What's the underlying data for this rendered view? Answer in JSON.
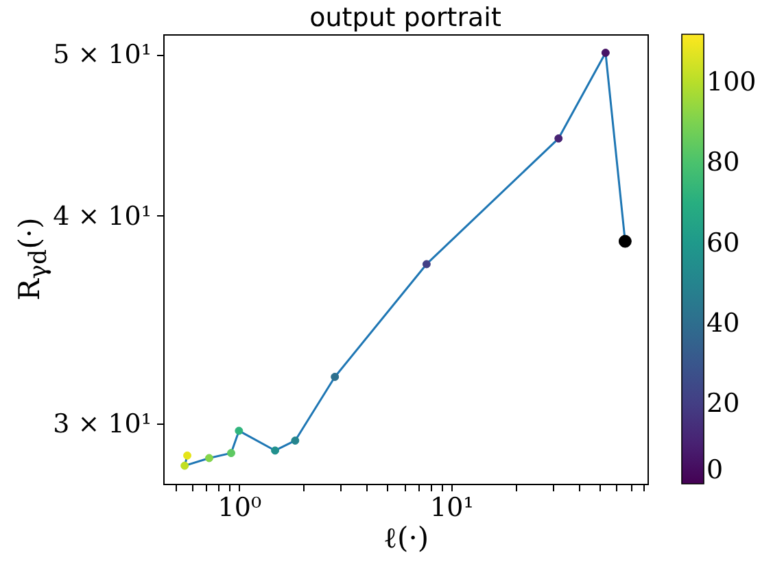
{
  "chart_data": {
    "type": "scatter",
    "title": "output portrait",
    "xlabel": "ℓ(·)",
    "ylabel": "R$_{γd}$(·)",
    "log": "xy",
    "xlim": [
      0.44,
      84
    ],
    "ylim": [
      27.6,
      51.4
    ],
    "xticks": [
      {
        "value": 0.5,
        "label": null
      },
      {
        "value": 0.6,
        "label": null
      },
      {
        "value": 0.7,
        "label": null
      },
      {
        "value": 0.8,
        "label": null
      },
      {
        "value": 0.9,
        "label": null
      },
      {
        "value": 1,
        "label": "10⁰"
      },
      {
        "value": 2,
        "label": null
      },
      {
        "value": 3,
        "label": null
      },
      {
        "value": 4,
        "label": null
      },
      {
        "value": 5,
        "label": null
      },
      {
        "value": 6,
        "label": null
      },
      {
        "value": 7,
        "label": null
      },
      {
        "value": 8,
        "label": null
      },
      {
        "value": 9,
        "label": null
      },
      {
        "value": 10,
        "label": "10¹"
      },
      {
        "value": 20,
        "label": null
      },
      {
        "value": 30,
        "label": null
      },
      {
        "value": 40,
        "label": null
      },
      {
        "value": 50,
        "label": null
      },
      {
        "value": 60,
        "label": null
      },
      {
        "value": 70,
        "label": null
      },
      {
        "value": 80,
        "label": null
      }
    ],
    "yticks": [
      {
        "value": 30,
        "label": "3 × 10¹"
      },
      {
        "value": 40,
        "label": "4 × 10¹"
      },
      {
        "value": 50,
        "label": "5 × 10¹"
      }
    ],
    "clim": [
      0,
      112
    ],
    "cticks": [
      0,
      20,
      40,
      60,
      80,
      100
    ],
    "grid": false,
    "series": [
      {
        "type": "line",
        "color": "#1f77b4",
        "x": [
          0.571,
          0.555,
          0.724,
          0.919,
          1.0,
          1.48,
          1.84,
          2.83,
          7.65,
          32.0,
          53.3,
          65.9
        ],
        "values": [
          28.7,
          28.3,
          28.6,
          28.8,
          29.7,
          28.9,
          29.3,
          32.0,
          37.4,
          44.5,
          50.1,
          38.6
        ]
      },
      {
        "marker": "circle",
        "x": [
          0.571,
          0.555,
          0.724,
          0.919,
          1.0,
          1.48,
          1.84,
          2.83,
          7.65,
          32.0,
          53.3
        ],
        "values": [
          28.7,
          28.3,
          28.6,
          28.8,
          29.7,
          28.9,
          29.3,
          32.0,
          37.4,
          44.5,
          50.1
        ],
        "cvalues": [
          108,
          100,
          90,
          84,
          72.5,
          57,
          52,
          41,
          21,
          11,
          5
        ],
        "colors": [
          "#e5e419",
          "#c2df23",
          "#86d549",
          "#5ec962",
          "#2fb47c",
          "#21908d",
          "#25848e",
          "#2d708e",
          "#424086",
          "#482374",
          "#471365"
        ]
      },
      {
        "marker": "circle",
        "color": "#000000",
        "x": [
          65.9
        ],
        "values": [
          38.6
        ]
      }
    ]
  }
}
